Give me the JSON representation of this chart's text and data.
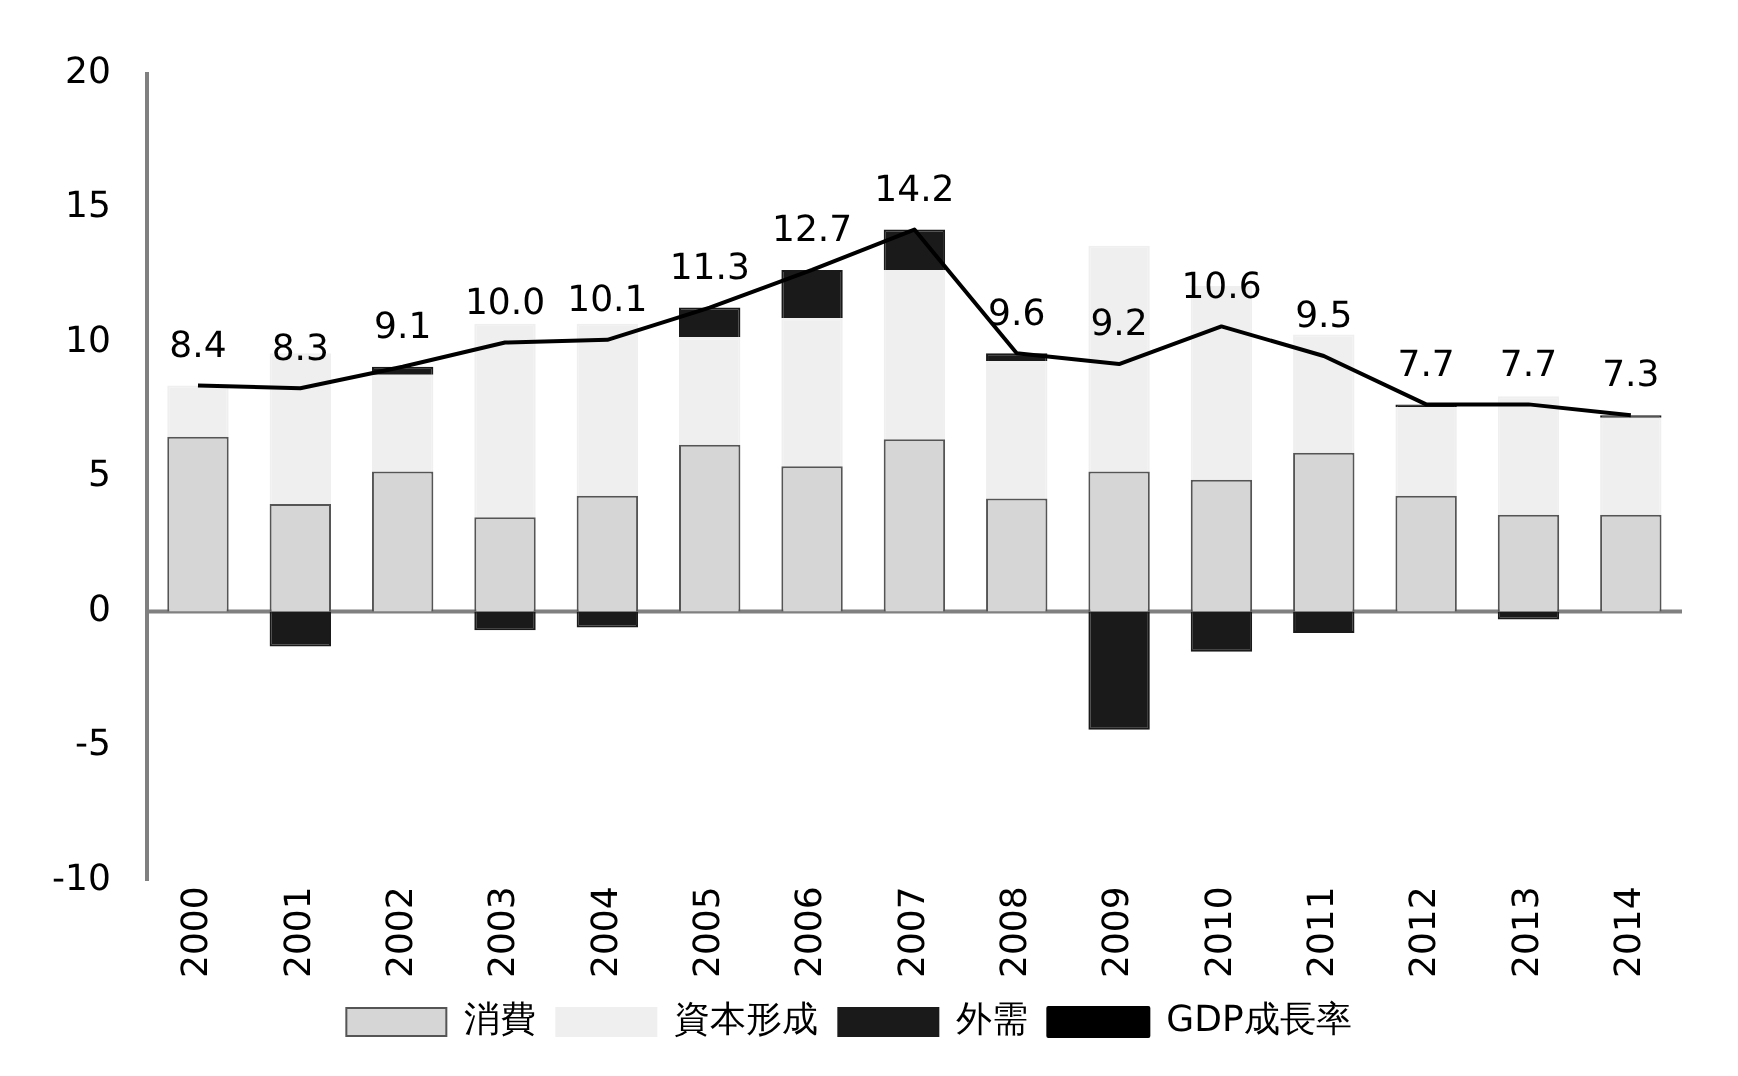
{
  "chart_data": {
    "type": "bar",
    "stacked": true,
    "categories": [
      "2000",
      "2001",
      "2002",
      "2003",
      "2004",
      "2005",
      "2006",
      "2007",
      "2008",
      "2009",
      "2010",
      "2011",
      "2012",
      "2013",
      "2014"
    ],
    "series": [
      {
        "name": "消費",
        "color": "#d6d6d6",
        "values": [
          6.5,
          4.0,
          5.2,
          3.5,
          4.3,
          6.2,
          5.4,
          6.4,
          4.2,
          5.2,
          4.9,
          5.9,
          4.3,
          3.6,
          3.6
        ]
      },
      {
        "name": "資本形成",
        "color": "#efefef",
        "values": [
          1.9,
          5.6,
          3.6,
          7.2,
          6.4,
          4.0,
          5.5,
          6.3,
          5.1,
          8.4,
          7.2,
          4.4,
          3.3,
          4.4,
          3.6
        ]
      },
      {
        "name": "外需",
        "color": "#1a1a1a",
        "values": [
          0.0,
          -1.3,
          0.3,
          -0.7,
          -0.6,
          1.1,
          1.8,
          1.5,
          0.3,
          -4.4,
          -1.5,
          -0.8,
          0.1,
          -0.3,
          0.1
        ]
      },
      {
        "name": "GDP成長率",
        "type": "line",
        "color": "#000000",
        "value_labels": [
          "8.4",
          "8.3",
          "9.1",
          "10.0",
          "10.1",
          "11.3",
          "12.7",
          "14.2",
          "9.6",
          "9.2",
          "10.6",
          "9.5",
          "7.7",
          "7.7",
          "7.3"
        ],
        "values": [
          8.4,
          8.3,
          9.1,
          10.0,
          10.1,
          11.3,
          12.7,
          14.2,
          9.6,
          9.2,
          10.6,
          9.5,
          7.7,
          7.7,
          7.3
        ]
      }
    ],
    "ylim": [
      -10,
      20
    ],
    "yticks": [
      -10,
      -5,
      0,
      5,
      10,
      15,
      20
    ],
    "ref_lines": [
      {
        "axis": "y",
        "value": 0,
        "color": "#808080"
      }
    ],
    "grid": false,
    "legend": "bottom",
    "marker": "none"
  }
}
